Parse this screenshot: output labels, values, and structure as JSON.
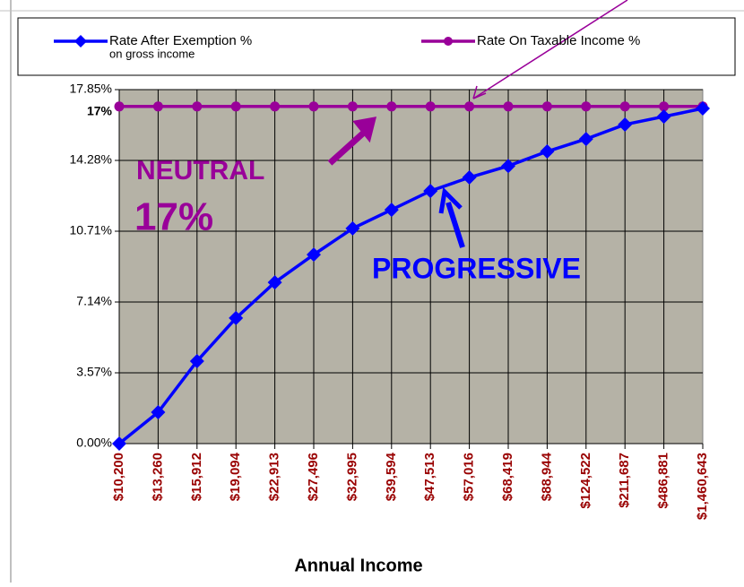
{
  "chart_data": {
    "type": "line",
    "categories": [
      "$10,200",
      "$13,260",
      "$15,912",
      "$19,094",
      "$22,913",
      "$27,496",
      "$32,995",
      "$39,594",
      "$47,513",
      "$57,016",
      "$68,419",
      "$88,944",
      "$124,522",
      "$211,687",
      "$486,881",
      "$1,460,643"
    ],
    "series": [
      {
        "name": "Rate After Exemption %",
        "note": "on gross income",
        "color": "#0000ff",
        "marker": "diamond",
        "values": [
          0,
          1.58,
          4.16,
          6.33,
          8.13,
          9.53,
          10.85,
          11.79,
          12.74,
          13.42,
          14.0,
          14.73,
          15.36,
          16.09,
          16.49,
          16.9
        ]
      },
      {
        "name": "Rate On Taxable Income %",
        "color": "#990099",
        "marker": "circle",
        "values": [
          17,
          17,
          17,
          17,
          17,
          17,
          17,
          17,
          17,
          17,
          17,
          17,
          17,
          17,
          17,
          17
        ]
      }
    ],
    "ylim": [
      0,
      17.85
    ],
    "yticks": [
      {
        "value": 0,
        "label": "0.00%"
      },
      {
        "value": 3.57,
        "label": "3.57%"
      },
      {
        "value": 7.14,
        "label": "7.14%"
      },
      {
        "value": 10.71,
        "label": "10.71%"
      },
      {
        "value": 14.28,
        "label": "14.28%"
      },
      {
        "value": 17.85,
        "label": "17.85%"
      }
    ],
    "highlight_ytick": {
      "value": 17,
      "label": "17%"
    },
    "xlabel": "Annual Income",
    "annotations": {
      "neutral": "NEUTRAL",
      "neutral_rate": "17%",
      "progressive": "PROGRESSIVE"
    },
    "grid": true,
    "plot_background": "#b5b2a6",
    "xtick_color": "#990000"
  }
}
